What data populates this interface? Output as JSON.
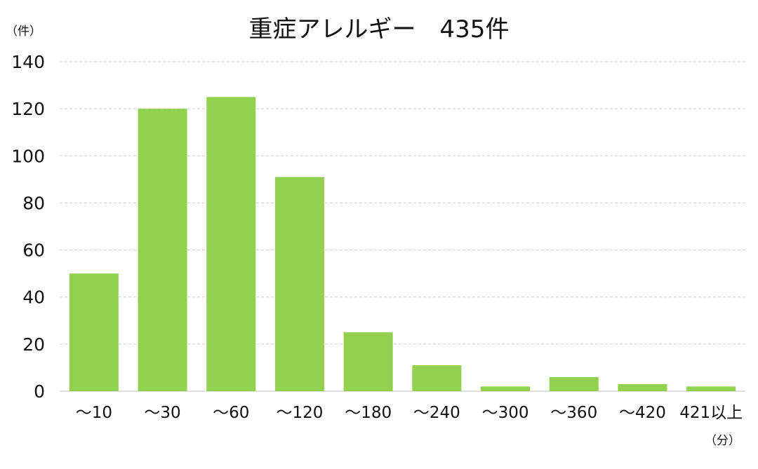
{
  "chart_data": {
    "type": "bar",
    "title": "重症アレルギー　435件",
    "ylabel": "（件）",
    "xlabel": "（分）",
    "categories": [
      "～10",
      "～30",
      "～60",
      "～120",
      "～180",
      "～240",
      "～300",
      "～360",
      "～420",
      "421以上"
    ],
    "values": [
      50,
      120,
      125,
      91,
      25,
      11,
      2,
      6,
      3,
      2
    ],
    "ylim": [
      0,
      140
    ],
    "yticks": [
      0,
      20,
      40,
      60,
      80,
      100,
      120,
      140
    ],
    "grid": true,
    "bar_color": "#92D050",
    "grid_color": "#D0D0D0"
  }
}
